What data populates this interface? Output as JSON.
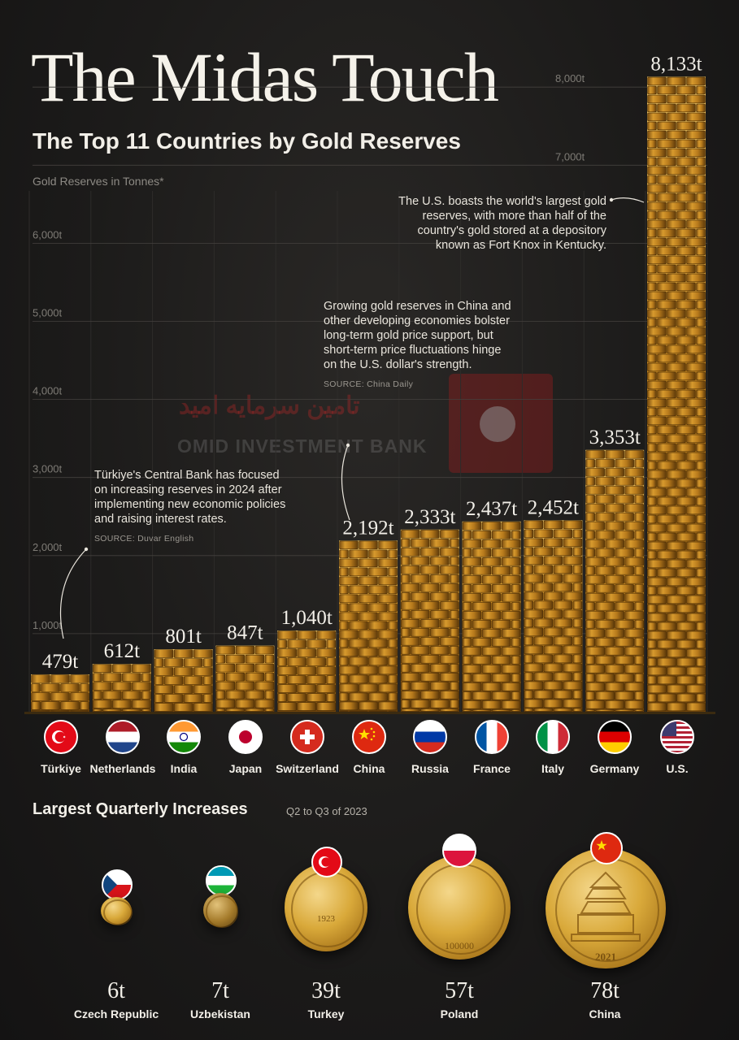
{
  "header": {
    "title": "The Midas Touch",
    "subtitle": "The Top 11 Countries by Gold Reserves",
    "unit_label": "Gold Reserves in Tonnes*"
  },
  "chart_data": {
    "type": "bar",
    "ylim": [
      0,
      8500
    ],
    "yticks": [
      1000,
      2000,
      3000,
      4000,
      5000,
      6000,
      7000,
      8000
    ],
    "ytick_labels": [
      "1,000t",
      "2,000t",
      "3,000t",
      "4,000t",
      "5,000t",
      "6,000t",
      "7,000t",
      "8,000t"
    ],
    "categories": [
      "Türkiye",
      "Netherlands",
      "India",
      "Japan",
      "Switzerland",
      "China",
      "Russia",
      "France",
      "Italy",
      "Germany",
      "U.S."
    ],
    "values": [
      479,
      612,
      801,
      847,
      1040,
      2192,
      2333,
      2437,
      2452,
      3353,
      8133
    ],
    "data_labels": [
      "479t",
      "612t",
      "801t",
      "847t",
      "1,040t",
      "2,192t",
      "2,333t",
      "2,437t",
      "2,452t",
      "3,353t",
      "8,133t"
    ],
    "grid": true,
    "bar_style": "stacked gold bars"
  },
  "annotations": {
    "us": "The U.S. boasts the world's largest gold reserves, with more than half of the country's gold stored at a depository known as Fort Knox in Kentucky.",
    "china": "Growing gold reserves in China and other developing economies bolster long-term gold price support, but short-term price fluctuations hinge on the U.S. dollar's strength.",
    "china_source": "SOURCE: China Daily",
    "turkiye": "Türkiye's Central Bank has focused on increasing reserves in 2024 after implementing new economic policies and raising interest rates.",
    "turkiye_source": "SOURCE: Duvar English"
  },
  "watermark": {
    "english": "OMID INVESTMENT BANK",
    "persian": "تامین سرمایه امید"
  },
  "flags": [
    "flag-turkiye-icon",
    "flag-netherlands-icon",
    "flag-india-icon",
    "flag-japan-icon",
    "flag-switzerland-icon",
    "flag-china-icon",
    "flag-russia-icon",
    "flag-france-icon",
    "flag-italy-icon",
    "flag-germany-icon",
    "flag-us-icon"
  ],
  "quarterly": {
    "title": "Largest Quarterly Increases",
    "subtitle": "Q2 to Q3 of 2023",
    "chart_data": {
      "type": "bar",
      "categories": [
        "Czech Republic",
        "Uzbekistan",
        "Turkey",
        "Poland",
        "China"
      ],
      "values": [
        6,
        7,
        39,
        57,
        78
      ],
      "data_labels": [
        "6t",
        "7t",
        "39t",
        "57t",
        "78t"
      ]
    },
    "coin_texts": {
      "turkey_year": "1923",
      "poland_value": "100000",
      "china_year": "2021"
    }
  },
  "colors": {
    "background": "#1c1b1a",
    "gold_light": "#f0c15a",
    "gold_mid": "#c98d24",
    "gold_dark": "#6e440c",
    "text": "#f2efe8",
    "muted": "#8d8a84",
    "grid": "#4a4744"
  }
}
